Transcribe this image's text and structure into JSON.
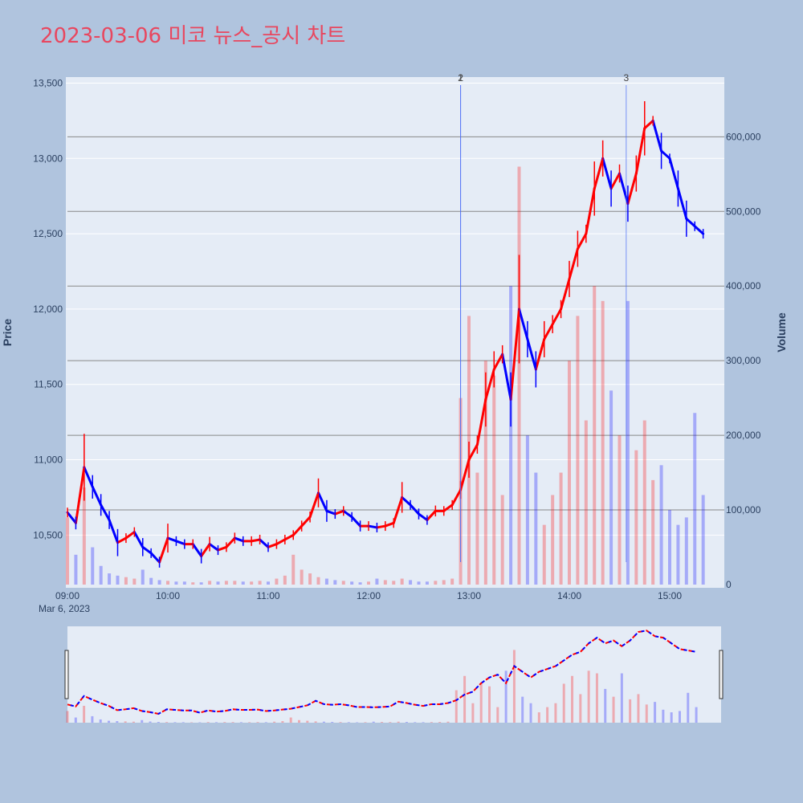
{
  "title": "2023-03-06 미코 뉴스_공시 차트",
  "chart_data": {
    "type": "candlestick+bar",
    "date_label": "Mar 6, 2023",
    "xlabel": "",
    "y_left_label": "Price",
    "y_right_label": "Volume",
    "x_ticks": [
      "09:00",
      "10:00",
      "11:00",
      "12:00",
      "13:00",
      "14:00",
      "15:00"
    ],
    "price_ticks": [
      "10,500",
      "11,000",
      "11,500",
      "12,000",
      "12,500",
      "13,000",
      "13,500"
    ],
    "volume_ticks": [
      "0",
      "100,000",
      "200,000",
      "300,000",
      "400,000",
      "500,000",
      "600,000"
    ],
    "price_range": [
      10150,
      13540
    ],
    "volume_range": [
      0,
      680000
    ],
    "grid": true,
    "colors": {
      "up": "#ff0000",
      "down": "#0000ff",
      "title": "#e8475f",
      "background": "#b0c4de",
      "plot": "#e5ecf6"
    },
    "annotations": [
      {
        "label": "1",
        "time": "12:55"
      },
      {
        "label": "2",
        "time": "12:55"
      },
      {
        "label": "3",
        "time": "14:34"
      }
    ],
    "price_series": {
      "times": [
        "09:00",
        "09:05",
        "09:10",
        "09:15",
        "09:20",
        "09:25",
        "09:30",
        "09:35",
        "09:40",
        "09:45",
        "09:50",
        "09:55",
        "10:00",
        "10:05",
        "10:10",
        "10:15",
        "10:20",
        "10:25",
        "10:30",
        "10:35",
        "10:40",
        "10:45",
        "10:50",
        "10:55",
        "11:00",
        "11:05",
        "11:10",
        "11:15",
        "11:20",
        "11:25",
        "11:30",
        "11:35",
        "11:40",
        "11:45",
        "11:50",
        "11:55",
        "12:00",
        "12:05",
        "12:10",
        "12:15",
        "12:20",
        "12:25",
        "12:30",
        "12:35",
        "12:40",
        "12:45",
        "12:50",
        "12:55",
        "13:00",
        "13:05",
        "13:10",
        "13:15",
        "13:20",
        "13:25",
        "13:30",
        "13:35",
        "13:40",
        "13:45",
        "13:50",
        "13:55",
        "14:00",
        "14:05",
        "14:10",
        "14:15",
        "14:20",
        "14:25",
        "14:30",
        "14:35",
        "14:40",
        "14:45",
        "14:50",
        "14:55",
        "15:00",
        "15:05",
        "15:10",
        "15:15",
        "15:20"
      ],
      "close": [
        10650,
        10580,
        10950,
        10820,
        10700,
        10600,
        10450,
        10480,
        10520,
        10420,
        10380,
        10320,
        10480,
        10460,
        10440,
        10440,
        10360,
        10440,
        10400,
        10420,
        10480,
        10460,
        10460,
        10470,
        10420,
        10440,
        10470,
        10500,
        10560,
        10620,
        10780,
        10660,
        10640,
        10660,
        10620,
        10560,
        10560,
        10550,
        10560,
        10580,
        10750,
        10700,
        10640,
        10600,
        10660,
        10660,
        10700,
        10800,
        11000,
        11100,
        11400,
        11600,
        11700,
        11400,
        12000,
        11800,
        11600,
        11800,
        11900,
        12000,
        12200,
        12400,
        12500,
        12800,
        13000,
        12800,
        12900,
        12700,
        12900,
        13200,
        13250,
        13050,
        13000,
        12800,
        12600,
        12550,
        12500
      ]
    },
    "volume_series": {
      "values": [
        90000,
        40000,
        130000,
        50000,
        25000,
        15000,
        12000,
        10000,
        8000,
        20000,
        9000,
        6000,
        5000,
        4000,
        4000,
        3000,
        3000,
        5000,
        4000,
        5000,
        5000,
        4000,
        4000,
        5000,
        4000,
        8000,
        12000,
        40000,
        20000,
        15000,
        10000,
        8000,
        6000,
        5000,
        4000,
        3000,
        4000,
        8000,
        6000,
        5000,
        8000,
        6000,
        4000,
        4000,
        5000,
        6000,
        8000,
        250000,
        360000,
        150000,
        300000,
        280000,
        120000,
        400000,
        560000,
        200000,
        150000,
        80000,
        120000,
        150000,
        300000,
        360000,
        220000,
        400000,
        380000,
        260000,
        200000,
        380000,
        180000,
        220000,
        140000,
        160000,
        100000,
        80000,
        90000,
        230000,
        120000
      ]
    }
  }
}
